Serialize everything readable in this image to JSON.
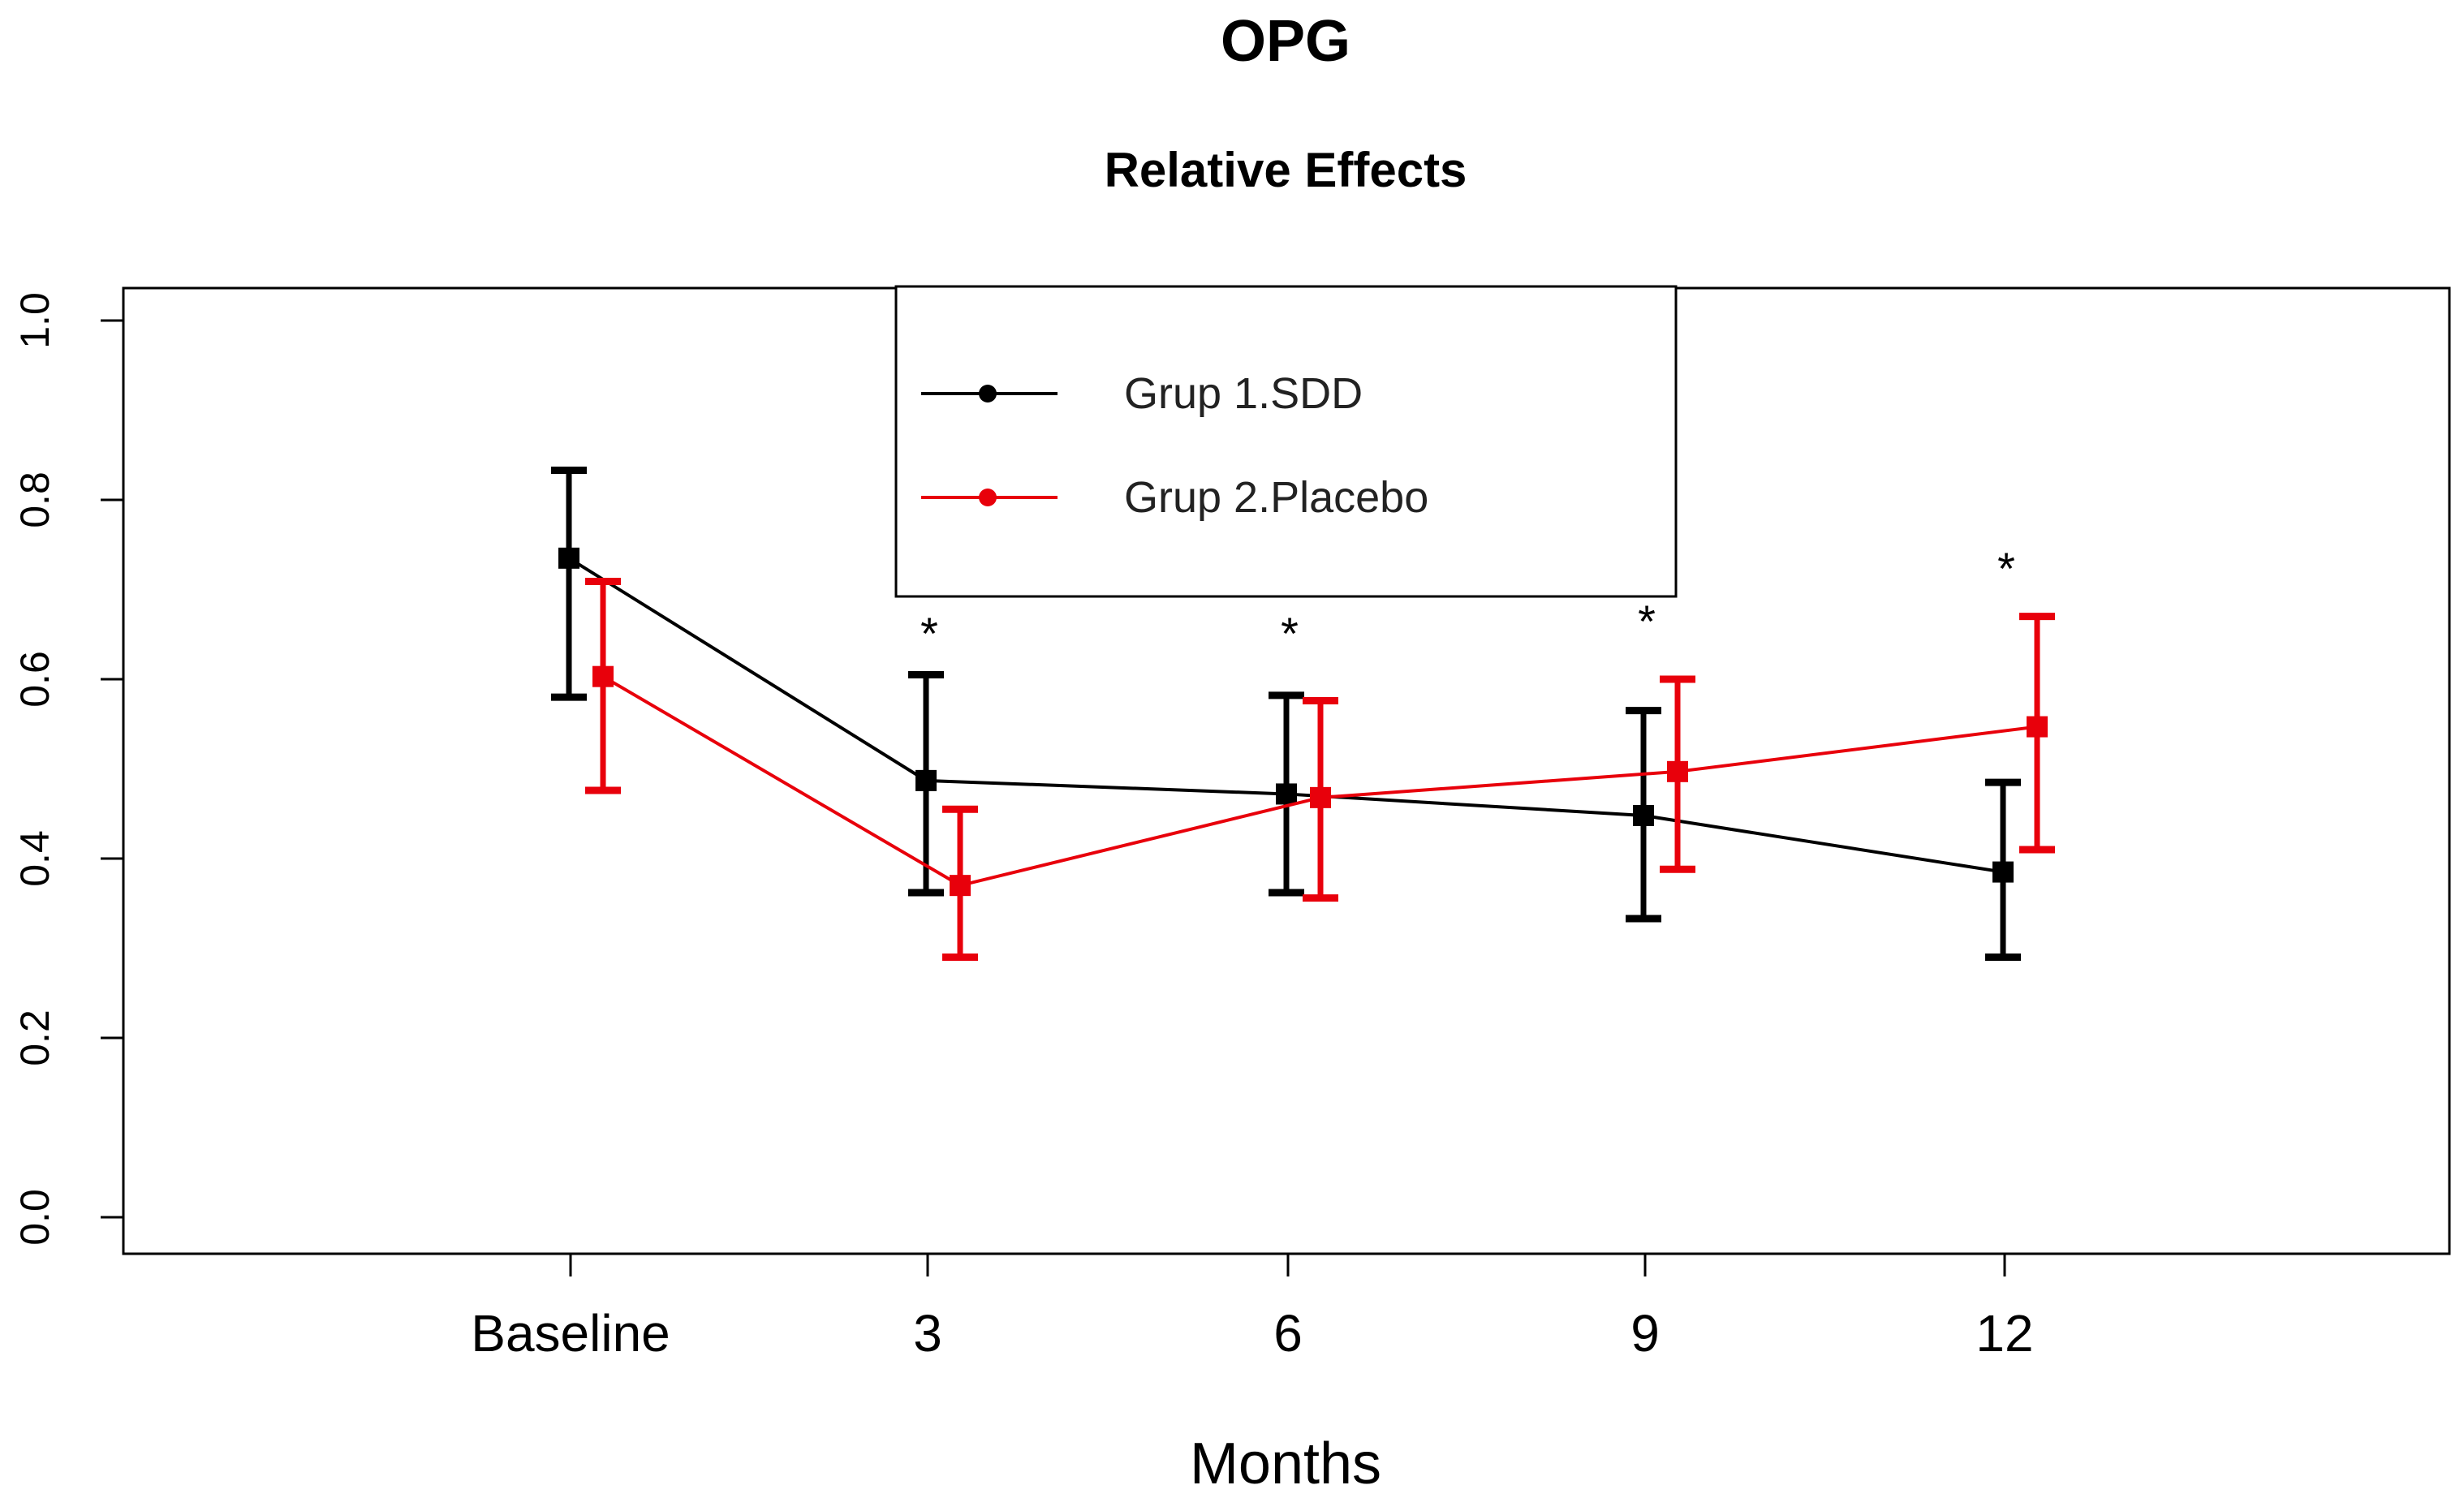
{
  "chart_data": {
    "type": "line",
    "title": "OPG",
    "subtitle": "Relative Effects",
    "xlabel": "Months",
    "ylabel": "",
    "ylim": [
      0.0,
      1.0
    ],
    "yticks": [
      "0.0",
      "0.2",
      "0.4",
      "0.6",
      "0.8",
      "1.0"
    ],
    "categories": [
      "Baseline",
      "3",
      "6",
      "9",
      "12"
    ],
    "grid": false,
    "legend_position": "top-center",
    "series": [
      {
        "name": "Grup 1.SDD",
        "color": "#000000",
        "values": [
          0.735,
          0.487,
          0.472,
          0.448,
          0.385
        ],
        "lower": [
          0.58,
          0.362,
          0.362,
          0.333,
          0.29
        ],
        "upper": [
          0.833,
          0.605,
          0.582,
          0.565,
          0.485
        ]
      },
      {
        "name": "Grup 2.Placebo",
        "color": "#e8000b",
        "values": [
          0.603,
          0.37,
          0.468,
          0.497,
          0.547
        ],
        "lower": [
          0.476,
          0.29,
          0.356,
          0.388,
          0.41
        ],
        "upper": [
          0.709,
          0.455,
          0.576,
          0.6,
          0.67
        ]
      }
    ],
    "annotations": [
      {
        "text": "*",
        "category": "3"
      },
      {
        "text": "*",
        "category": "6"
      },
      {
        "text": "*",
        "category": "9"
      },
      {
        "text": "*",
        "category": "12"
      }
    ]
  }
}
